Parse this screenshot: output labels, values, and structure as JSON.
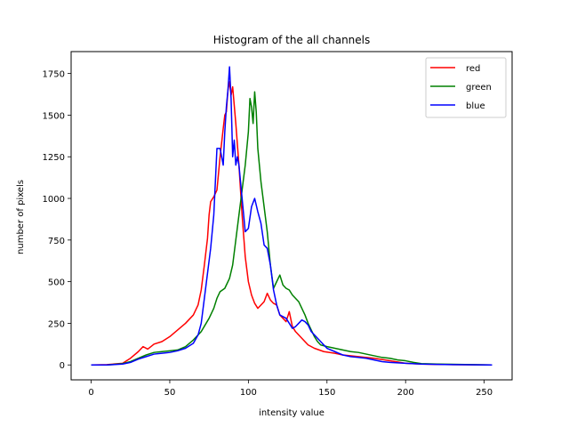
{
  "chart_data": {
    "type": "line",
    "title": "Histogram of the all channels",
    "xlabel": "intensity value",
    "ylabel": "number of pixels",
    "xlim": [
      -12.75,
      267.75
    ],
    "ylim": [
      -89.6,
      1881.6
    ],
    "xticks": [
      0,
      50,
      100,
      150,
      200,
      250
    ],
    "yticks": [
      0,
      250,
      500,
      750,
      1000,
      1250,
      1500,
      1750
    ],
    "grid": false,
    "legend_position": "top-right",
    "series": [
      {
        "name": "red",
        "color": "#ff0000",
        "points": [
          [
            0,
            0
          ],
          [
            10,
            2
          ],
          [
            20,
            10
          ],
          [
            25,
            40
          ],
          [
            30,
            80
          ],
          [
            33,
            110
          ],
          [
            36,
            95
          ],
          [
            40,
            125
          ],
          [
            45,
            140
          ],
          [
            50,
            170
          ],
          [
            55,
            210
          ],
          [
            60,
            250
          ],
          [
            65,
            300
          ],
          [
            68,
            360
          ],
          [
            70,
            450
          ],
          [
            72,
            600
          ],
          [
            74,
            760
          ],
          [
            75,
            900
          ],
          [
            76,
            980
          ],
          [
            78,
            1010
          ],
          [
            80,
            1050
          ],
          [
            82,
            1250
          ],
          [
            84,
            1420
          ],
          [
            85,
            1500
          ],
          [
            86,
            1520
          ],
          [
            87,
            1650
          ],
          [
            88,
            1700
          ],
          [
            89,
            1620
          ],
          [
            90,
            1670
          ],
          [
            92,
            1450
          ],
          [
            94,
            1200
          ],
          [
            96,
            900
          ],
          [
            98,
            650
          ],
          [
            100,
            500
          ],
          [
            102,
            420
          ],
          [
            104,
            370
          ],
          [
            106,
            340
          ],
          [
            108,
            360
          ],
          [
            110,
            380
          ],
          [
            112,
            430
          ],
          [
            114,
            390
          ],
          [
            116,
            370
          ],
          [
            118,
            360
          ],
          [
            120,
            300
          ],
          [
            122,
            280
          ],
          [
            124,
            260
          ],
          [
            126,
            320
          ],
          [
            128,
            230
          ],
          [
            130,
            200
          ],
          [
            134,
            160
          ],
          [
            138,
            120
          ],
          [
            142,
            100
          ],
          [
            148,
            80
          ],
          [
            155,
            70
          ],
          [
            160,
            60
          ],
          [
            170,
            50
          ],
          [
            180,
            40
          ],
          [
            190,
            25
          ],
          [
            200,
            10
          ],
          [
            210,
            5
          ],
          [
            220,
            3
          ],
          [
            255,
            0
          ]
        ]
      },
      {
        "name": "green",
        "color": "#008000",
        "points": [
          [
            0,
            0
          ],
          [
            10,
            0
          ],
          [
            20,
            8
          ],
          [
            25,
            20
          ],
          [
            30,
            40
          ],
          [
            35,
            60
          ],
          [
            40,
            75
          ],
          [
            45,
            80
          ],
          [
            50,
            85
          ],
          [
            55,
            90
          ],
          [
            60,
            110
          ],
          [
            65,
            150
          ],
          [
            70,
            200
          ],
          [
            75,
            280
          ],
          [
            78,
            340
          ],
          [
            80,
            400
          ],
          [
            82,
            440
          ],
          [
            85,
            460
          ],
          [
            88,
            520
          ],
          [
            90,
            600
          ],
          [
            92,
            750
          ],
          [
            94,
            900
          ],
          [
            96,
            1050
          ],
          [
            98,
            1200
          ],
          [
            100,
            1400
          ],
          [
            101,
            1600
          ],
          [
            102,
            1550
          ],
          [
            103,
            1450
          ],
          [
            104,
            1640
          ],
          [
            105,
            1520
          ],
          [
            106,
            1300
          ],
          [
            108,
            1100
          ],
          [
            110,
            950
          ],
          [
            112,
            800
          ],
          [
            114,
            600
          ],
          [
            116,
            460
          ],
          [
            118,
            500
          ],
          [
            120,
            540
          ],
          [
            122,
            480
          ],
          [
            124,
            460
          ],
          [
            126,
            450
          ],
          [
            128,
            420
          ],
          [
            130,
            400
          ],
          [
            132,
            380
          ],
          [
            134,
            340
          ],
          [
            136,
            300
          ],
          [
            138,
            250
          ],
          [
            140,
            210
          ],
          [
            142,
            170
          ],
          [
            144,
            140
          ],
          [
            146,
            120
          ],
          [
            150,
            110
          ],
          [
            155,
            100
          ],
          [
            160,
            90
          ],
          [
            165,
            80
          ],
          [
            170,
            75
          ],
          [
            175,
            65
          ],
          [
            180,
            55
          ],
          [
            185,
            45
          ],
          [
            190,
            40
          ],
          [
            195,
            30
          ],
          [
            200,
            25
          ],
          [
            205,
            15
          ],
          [
            210,
            8
          ],
          [
            220,
            5
          ],
          [
            255,
            0
          ]
        ]
      },
      {
        "name": "blue",
        "color": "#0000ff",
        "points": [
          [
            0,
            0
          ],
          [
            10,
            0
          ],
          [
            20,
            5
          ],
          [
            25,
            15
          ],
          [
            30,
            35
          ],
          [
            35,
            50
          ],
          [
            40,
            65
          ],
          [
            45,
            70
          ],
          [
            50,
            75
          ],
          [
            55,
            85
          ],
          [
            60,
            100
          ],
          [
            65,
            130
          ],
          [
            68,
            180
          ],
          [
            70,
            250
          ],
          [
            72,
            400
          ],
          [
            74,
            550
          ],
          [
            76,
            700
          ],
          [
            78,
            900
          ],
          [
            79,
            1100
          ],
          [
            80,
            1300
          ],
          [
            82,
            1300
          ],
          [
            84,
            1200
          ],
          [
            85,
            1400
          ],
          [
            86,
            1550
          ],
          [
            87,
            1650
          ],
          [
            88,
            1790
          ],
          [
            89,
            1600
          ],
          [
            90,
            1250
          ],
          [
            91,
            1350
          ],
          [
            92,
            1200
          ],
          [
            93,
            1250
          ],
          [
            94,
            1200
          ],
          [
            96,
            1000
          ],
          [
            97,
            900
          ],
          [
            98,
            800
          ],
          [
            100,
            820
          ],
          [
            102,
            950
          ],
          [
            104,
            1000
          ],
          [
            106,
            920
          ],
          [
            108,
            850
          ],
          [
            110,
            720
          ],
          [
            112,
            700
          ],
          [
            114,
            600
          ],
          [
            116,
            450
          ],
          [
            118,
            360
          ],
          [
            120,
            300
          ],
          [
            122,
            290
          ],
          [
            124,
            280
          ],
          [
            126,
            250
          ],
          [
            128,
            220
          ],
          [
            130,
            230
          ],
          [
            132,
            250
          ],
          [
            134,
            270
          ],
          [
            136,
            260
          ],
          [
            138,
            240
          ],
          [
            140,
            200
          ],
          [
            142,
            180
          ],
          [
            144,
            160
          ],
          [
            146,
            140
          ],
          [
            148,
            120
          ],
          [
            150,
            100
          ],
          [
            155,
            80
          ],
          [
            160,
            60
          ],
          [
            165,
            50
          ],
          [
            170,
            45
          ],
          [
            175,
            40
          ],
          [
            180,
            30
          ],
          [
            185,
            20
          ],
          [
            190,
            15
          ],
          [
            200,
            10
          ],
          [
            210,
            5
          ],
          [
            220,
            3
          ],
          [
            255,
            0
          ]
        ]
      }
    ]
  }
}
